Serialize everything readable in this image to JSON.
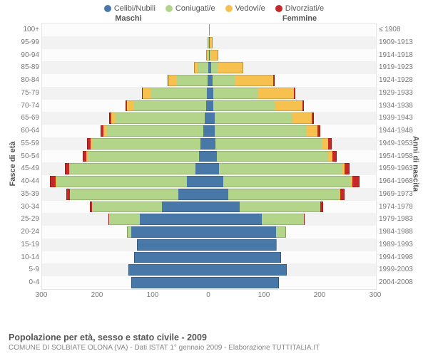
{
  "colors": {
    "celibi": "#4778a8",
    "coniugati": "#b3d58a",
    "vedovi": "#f6c14f",
    "divorziati": "#c62828",
    "bg": "#ffffff",
    "plot_bg": "#f7f7f7",
    "grid": "#e8e8e8",
    "row_odd": "#fcfcfc",
    "row_even": "#f2f2f2",
    "centerline": "#aaaaaa",
    "text": "#555555",
    "text_muted": "#888888"
  },
  "legend": [
    {
      "label": "Celibi/Nubili",
      "color_key": "celibi"
    },
    {
      "label": "Coniugati/e",
      "color_key": "coniugati"
    },
    {
      "label": "Vedovi/e",
      "color_key": "vedovi"
    },
    {
      "label": "Divorziati/e",
      "color_key": "divorziati"
    }
  ],
  "header_left": "Maschi",
  "header_right": "Femmine",
  "axis_left_title": "Fasce di età",
  "axis_right_title": "Anni di nascita",
  "xlim": 300,
  "xtick_step": 100,
  "xticks": [
    300,
    200,
    100,
    0,
    100,
    200,
    300
  ],
  "footer_title": "Popolazione per età, sesso e stato civile - 2009",
  "footer_sub": "COMUNE DI SOLBIATE OLONA (VA) - Dati ISTAT 1° gennaio 2009 - Elaborazione TUTTITALIA.IT",
  "rows": [
    {
      "age": "100+",
      "birth": "≤ 1908",
      "m": {
        "c": 0,
        "co": 0,
        "v": 0,
        "d": 0
      },
      "f": {
        "c": 0,
        "co": 0,
        "v": 1,
        "d": 0
      }
    },
    {
      "age": "95-99",
      "birth": "1909-1913",
      "m": {
        "c": 0,
        "co": 1,
        "v": 1,
        "d": 0
      },
      "f": {
        "c": 1,
        "co": 0,
        "v": 6,
        "d": 0
      }
    },
    {
      "age": "90-94",
      "birth": "1914-1918",
      "m": {
        "c": 0,
        "co": 3,
        "v": 2,
        "d": 0
      },
      "f": {
        "c": 1,
        "co": 2,
        "v": 14,
        "d": 0
      }
    },
    {
      "age": "85-89",
      "birth": "1919-1923",
      "m": {
        "c": 1,
        "co": 18,
        "v": 8,
        "d": 0
      },
      "f": {
        "c": 4,
        "co": 12,
        "v": 45,
        "d": 0
      }
    },
    {
      "age": "80-84",
      "birth": "1924-1928",
      "m": {
        "c": 3,
        "co": 55,
        "v": 15,
        "d": 2
      },
      "f": {
        "c": 6,
        "co": 40,
        "v": 70,
        "d": 2
      }
    },
    {
      "age": "75-79",
      "birth": "1929-1933",
      "m": {
        "c": 4,
        "co": 100,
        "v": 15,
        "d": 2
      },
      "f": {
        "c": 8,
        "co": 80,
        "v": 65,
        "d": 2
      }
    },
    {
      "age": "70-74",
      "birth": "1934-1938",
      "m": {
        "c": 5,
        "co": 130,
        "v": 12,
        "d": 3
      },
      "f": {
        "c": 8,
        "co": 110,
        "v": 50,
        "d": 3
      }
    },
    {
      "age": "65-69",
      "birth": "1939-1943",
      "m": {
        "c": 8,
        "co": 160,
        "v": 8,
        "d": 4
      },
      "f": {
        "c": 10,
        "co": 140,
        "v": 35,
        "d": 4
      }
    },
    {
      "age": "60-64",
      "birth": "1944-1948",
      "m": {
        "c": 10,
        "co": 175,
        "v": 5,
        "d": 5
      },
      "f": {
        "c": 10,
        "co": 165,
        "v": 20,
        "d": 5
      }
    },
    {
      "age": "55-59",
      "birth": "1949-1953",
      "m": {
        "c": 15,
        "co": 195,
        "v": 3,
        "d": 6
      },
      "f": {
        "c": 12,
        "co": 190,
        "v": 12,
        "d": 6
      }
    },
    {
      "age": "50-54",
      "birth": "1954-1958",
      "m": {
        "c": 18,
        "co": 200,
        "v": 2,
        "d": 7
      },
      "f": {
        "c": 14,
        "co": 200,
        "v": 8,
        "d": 7
      }
    },
    {
      "age": "45-49",
      "birth": "1959-1963",
      "m": {
        "c": 25,
        "co": 225,
        "v": 1,
        "d": 8
      },
      "f": {
        "c": 18,
        "co": 220,
        "v": 5,
        "d": 9
      }
    },
    {
      "age": "40-44",
      "birth": "1964-1968",
      "m": {
        "c": 40,
        "co": 235,
        "v": 1,
        "d": 10
      },
      "f": {
        "c": 25,
        "co": 230,
        "v": 3,
        "d": 12
      }
    },
    {
      "age": "35-39",
      "birth": "1969-1973",
      "m": {
        "c": 55,
        "co": 195,
        "v": 0,
        "d": 6
      },
      "f": {
        "c": 35,
        "co": 200,
        "v": 1,
        "d": 8
      }
    },
    {
      "age": "30-34",
      "birth": "1974-1978",
      "m": {
        "c": 85,
        "co": 125,
        "v": 0,
        "d": 4
      },
      "f": {
        "c": 55,
        "co": 145,
        "v": 0,
        "d": 5
      }
    },
    {
      "age": "25-29",
      "birth": "1979-1983",
      "m": {
        "c": 125,
        "co": 55,
        "v": 0,
        "d": 1
      },
      "f": {
        "c": 95,
        "co": 75,
        "v": 0,
        "d": 2
      }
    },
    {
      "age": "20-24",
      "birth": "1984-1988",
      "m": {
        "c": 140,
        "co": 8,
        "v": 0,
        "d": 0
      },
      "f": {
        "c": 120,
        "co": 18,
        "v": 0,
        "d": 0
      }
    },
    {
      "age": "15-19",
      "birth": "1989-1993",
      "m": {
        "c": 130,
        "co": 0,
        "v": 0,
        "d": 0
      },
      "f": {
        "c": 120,
        "co": 1,
        "v": 0,
        "d": 0
      }
    },
    {
      "age": "10-14",
      "birth": "1994-1998",
      "m": {
        "c": 135,
        "co": 0,
        "v": 0,
        "d": 0
      },
      "f": {
        "c": 130,
        "co": 0,
        "v": 0,
        "d": 0
      }
    },
    {
      "age": "5-9",
      "birth": "1999-2003",
      "m": {
        "c": 145,
        "co": 0,
        "v": 0,
        "d": 0
      },
      "f": {
        "c": 140,
        "co": 0,
        "v": 0,
        "d": 0
      }
    },
    {
      "age": "0-4",
      "birth": "2004-2008",
      "m": {
        "c": 140,
        "co": 0,
        "v": 0,
        "d": 0
      },
      "f": {
        "c": 125,
        "co": 0,
        "v": 0,
        "d": 0
      }
    }
  ]
}
